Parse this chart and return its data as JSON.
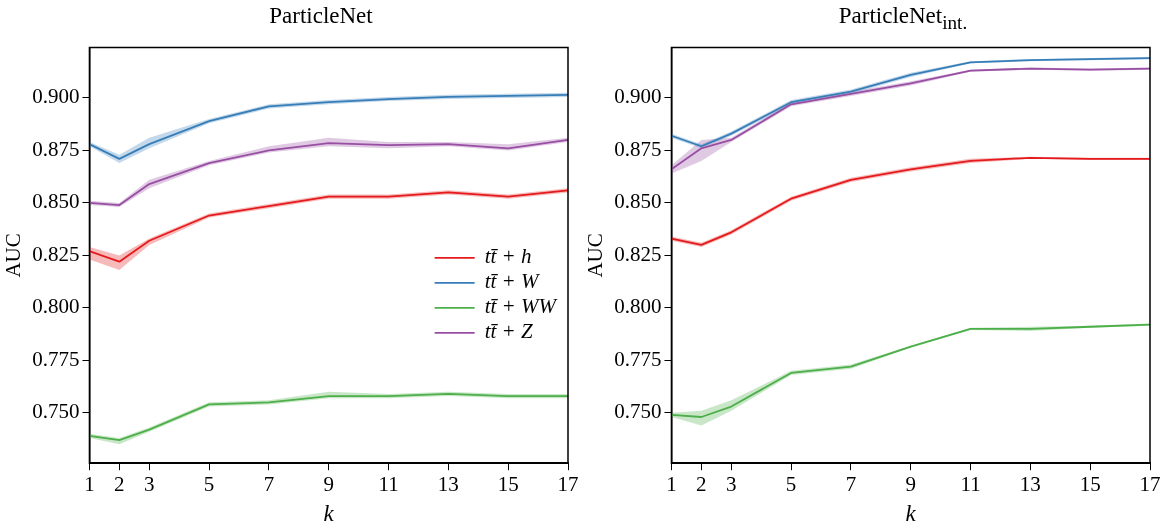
{
  "chart_data": [
    {
      "type": "line",
      "title": "ParticleNet",
      "xlabel": "k",
      "ylabel": "AUC",
      "x": [
        1,
        2,
        3,
        5,
        7,
        9,
        11,
        13,
        15,
        17
      ],
      "xlim": [
        1,
        17
      ],
      "xticks": [
        1,
        2,
        3,
        5,
        7,
        9,
        11,
        13,
        15,
        17
      ],
      "ylim": [
        0.726,
        0.924
      ],
      "yticks": [
        {
          "value": 0.75,
          "label": "0.750"
        },
        {
          "value": 0.775,
          "label": "0.775"
        },
        {
          "value": 0.8,
          "label": "0.800"
        },
        {
          "value": 0.825,
          "label": "0.825"
        },
        {
          "value": 0.85,
          "label": "0.850"
        },
        {
          "value": 0.875,
          "label": "0.875"
        },
        {
          "value": 0.9,
          "label": "0.900"
        }
      ],
      "grid": false,
      "legend": "center right",
      "marker": "none",
      "line_style": "solid",
      "series": [
        {
          "name": "tt̄ + h",
          "color": "#e41a1c",
          "values": [
            0.827,
            0.822,
            0.832,
            0.844,
            0.8485,
            0.853,
            0.853,
            0.855,
            0.853,
            0.856
          ],
          "lower": [
            0.823,
            0.818,
            0.83,
            0.843,
            0.8475,
            0.852,
            0.852,
            0.854,
            0.852,
            0.855
          ],
          "upper": [
            0.829,
            0.825,
            0.833,
            0.845,
            0.8495,
            0.854,
            0.854,
            0.856,
            0.854,
            0.857
          ]
        },
        {
          "name": "tt̄ + W",
          "color": "#377eb8",
          "values": [
            0.878,
            0.871,
            0.878,
            0.889,
            0.896,
            0.898,
            0.8995,
            0.9005,
            0.901,
            0.9015
          ],
          "lower": [
            0.877,
            0.869,
            0.876,
            0.888,
            0.895,
            0.897,
            0.8985,
            0.8995,
            0.9,
            0.9005
          ],
          "upper": [
            0.879,
            0.873,
            0.881,
            0.89,
            0.897,
            0.899,
            0.9005,
            0.9015,
            0.902,
            0.9025
          ]
        },
        {
          "name": "tt̄ + WW",
          "color": "#4daf4a",
          "values": [
            0.739,
            0.737,
            0.742,
            0.754,
            0.755,
            0.758,
            0.758,
            0.759,
            0.758,
            0.758
          ],
          "lower": [
            0.738,
            0.735,
            0.741,
            0.753,
            0.754,
            0.757,
            0.757,
            0.758,
            0.757,
            0.757
          ],
          "upper": [
            0.74,
            0.738,
            0.743,
            0.755,
            0.756,
            0.76,
            0.759,
            0.76,
            0.759,
            0.759
          ]
        },
        {
          "name": "tt̄ + Z",
          "color": "#984ea3",
          "values": [
            0.85,
            0.849,
            0.859,
            0.869,
            0.875,
            0.8785,
            0.8775,
            0.878,
            0.876,
            0.88
          ],
          "lower": [
            0.849,
            0.848,
            0.857,
            0.868,
            0.874,
            0.877,
            0.876,
            0.877,
            0.875,
            0.879
          ],
          "upper": [
            0.851,
            0.85,
            0.861,
            0.87,
            0.877,
            0.881,
            0.879,
            0.879,
            0.878,
            0.881
          ]
        }
      ]
    },
    {
      "type": "line",
      "title": "ParticleNet$_{int.}$",
      "xlabel": "k",
      "ylabel": "AUC",
      "x": [
        1,
        2,
        3,
        5,
        7,
        9,
        11,
        13,
        15,
        17
      ],
      "xlim": [
        1,
        17
      ],
      "xticks": [
        1,
        2,
        3,
        5,
        7,
        9,
        11,
        13,
        15,
        17
      ],
      "ylim": [
        0.726,
        0.924
      ],
      "yticks": [
        {
          "value": 0.75,
          "label": "0.750"
        },
        {
          "value": 0.775,
          "label": "0.775"
        },
        {
          "value": 0.8,
          "label": "0.800"
        },
        {
          "value": 0.825,
          "label": "0.825"
        },
        {
          "value": 0.85,
          "label": "0.850"
        },
        {
          "value": 0.875,
          "label": "0.875"
        },
        {
          "value": 0.9,
          "label": "0.900"
        }
      ],
      "grid": false,
      "marker": "none",
      "line_style": "solid",
      "series": [
        {
          "color": "#e41a1c",
          "values": [
            0.833,
            0.83,
            0.836,
            0.852,
            0.861,
            0.866,
            0.87,
            0.8715,
            0.871,
            0.871
          ],
          "lower": [
            0.832,
            0.829,
            0.835,
            0.851,
            0.86,
            0.865,
            0.869,
            0.871,
            0.8705,
            0.8705
          ],
          "upper": [
            0.834,
            0.831,
            0.837,
            0.853,
            0.862,
            0.867,
            0.871,
            0.872,
            0.8715,
            0.8715
          ]
        },
        {
          "color": "#377eb8",
          "values": [
            0.882,
            0.877,
            0.883,
            0.898,
            0.903,
            0.911,
            0.917,
            0.918,
            0.9185,
            0.919
          ],
          "lower": [
            0.881,
            0.876,
            0.882,
            0.897,
            0.902,
            0.91,
            0.9165,
            0.9175,
            0.918,
            0.9185
          ],
          "upper": [
            0.883,
            0.878,
            0.884,
            0.899,
            0.904,
            0.912,
            0.9175,
            0.9185,
            0.919,
            0.9195
          ]
        },
        {
          "color": "#4daf4a",
          "values": [
            0.749,
            0.748,
            0.753,
            0.769,
            0.772,
            0.7815,
            0.79,
            0.79,
            0.791,
            0.792
          ],
          "lower": [
            0.748,
            0.744,
            0.751,
            0.768,
            0.771,
            0.781,
            0.7895,
            0.789,
            0.7905,
            0.7915
          ],
          "upper": [
            0.75,
            0.751,
            0.756,
            0.77,
            0.773,
            0.782,
            0.7905,
            0.791,
            0.7915,
            0.7925
          ]
        },
        {
          "color": "#984ea3",
          "values": [
            0.866,
            0.876,
            0.88,
            0.897,
            0.902,
            0.907,
            0.913,
            0.914,
            0.9135,
            0.914
          ],
          "lower": [
            0.864,
            0.87,
            0.879,
            0.896,
            0.901,
            0.906,
            0.9125,
            0.9135,
            0.913,
            0.9135
          ],
          "upper": [
            0.868,
            0.88,
            0.881,
            0.898,
            0.903,
            0.908,
            0.9135,
            0.9145,
            0.914,
            0.9145
          ]
        }
      ]
    }
  ]
}
